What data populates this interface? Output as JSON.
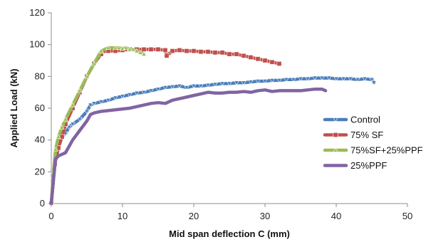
{
  "chart_data": {
    "type": "line",
    "title": "",
    "xlabel": "Mid span deflection C (mm)",
    "ylabel": "Applied Load (kN)",
    "xlim": [
      0,
      50
    ],
    "ylim": [
      0,
      120
    ],
    "xticks": [
      0,
      10,
      20,
      30,
      40,
      50
    ],
    "yticks": [
      0,
      20,
      40,
      60,
      80,
      100,
      120
    ],
    "grid": false,
    "legend_position": "right",
    "series": [
      {
        "name": "Control",
        "color": "#4a7ebb",
        "marker": "triangle-down",
        "x": [
          0,
          0.3,
          0.6,
          1,
          1.5,
          2,
          2.5,
          3,
          4,
          5,
          5.5,
          6,
          7,
          8,
          9,
          10,
          11,
          12,
          13,
          14,
          15,
          16,
          17,
          18,
          19,
          20,
          21,
          22,
          23,
          24,
          25,
          26,
          27,
          28,
          29,
          30,
          31,
          32,
          33,
          34,
          35,
          36,
          37,
          38,
          39,
          40,
          41,
          42,
          43,
          44,
          45,
          45.3
        ],
        "y": [
          0,
          15,
          30,
          40,
          42,
          44,
          48,
          50,
          53,
          58,
          62,
          63,
          64,
          65,
          66.5,
          67.5,
          68.5,
          69.5,
          70,
          71,
          72,
          73,
          73.5,
          74,
          73,
          74,
          74,
          74.5,
          75,
          75.5,
          75.5,
          76,
          76,
          76.5,
          77,
          77,
          77.5,
          77.5,
          78,
          78,
          78.5,
          78.5,
          79,
          79,
          79,
          78.5,
          78.5,
          78.5,
          78,
          78.5,
          78,
          76
        ]
      },
      {
        "name": "75% SF",
        "color": "#c0504d",
        "marker": "square",
        "x": [
          0,
          0.5,
          1,
          1.5,
          2,
          3,
          4,
          5,
          6,
          7,
          7.5,
          8,
          9,
          10,
          11,
          12,
          13,
          14,
          15,
          16,
          16.2,
          17,
          18,
          19,
          20,
          21,
          22,
          23,
          24,
          25,
          26,
          27,
          28,
          29,
          30,
          31,
          32
        ],
        "y": [
          0,
          25,
          35,
          42,
          50,
          60,
          70,
          80,
          88,
          94,
          96,
          96,
          96,
          96.5,
          97,
          97,
          97,
          97,
          97,
          96.5,
          93,
          96,
          96.5,
          96,
          96,
          95.5,
          95.5,
          95,
          95,
          94,
          94,
          93,
          92,
          91,
          90,
          89,
          88
        ]
      },
      {
        "name": "75%SF+25%PPF",
        "color": "#9bbb59",
        "marker": "triangle-up",
        "x": [
          0,
          0.3,
          0.6,
          1,
          1.5,
          2,
          3,
          4,
          5,
          6,
          7,
          8,
          9,
          9.5,
          10,
          10.5,
          11,
          11.5,
          12,
          12.5,
          13
        ],
        "y": [
          0,
          20,
          34,
          42,
          48,
          53,
          62,
          71,
          80,
          88,
          96,
          98,
          98,
          98,
          97.5,
          98,
          97,
          97,
          96,
          95,
          94
        ]
      },
      {
        "name": "25%PPF",
        "color": "#8064a2",
        "marker": "none",
        "x": [
          0,
          0.3,
          0.6,
          1,
          1.5,
          2,
          2.5,
          3,
          4,
          5,
          5.5,
          6,
          7,
          8,
          9,
          10,
          11,
          12,
          13,
          14,
          15,
          16,
          17,
          18,
          19,
          20,
          21,
          22,
          23,
          24,
          25,
          26,
          27,
          28,
          29,
          30,
          31,
          32,
          33,
          34,
          35,
          36,
          37,
          38,
          38.5
        ],
        "y": [
          0,
          15,
          28,
          30,
          31,
          32,
          36,
          40,
          46,
          52,
          56,
          57,
          58,
          58.5,
          59,
          59.5,
          60,
          61,
          62,
          63,
          63.5,
          63,
          65,
          66,
          67,
          68,
          69,
          70,
          69.5,
          69.5,
          70,
          70,
          70.5,
          70,
          71,
          71.5,
          70.5,
          71,
          71,
          71,
          71,
          71.5,
          72,
          72,
          71
        ]
      }
    ]
  }
}
